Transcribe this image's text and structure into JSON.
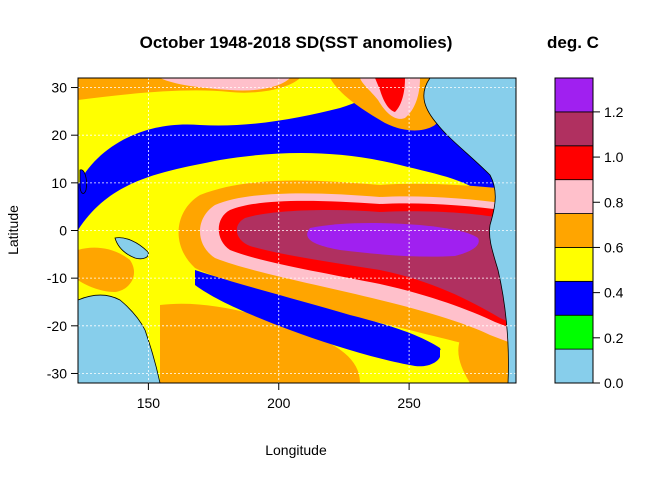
{
  "chart_data": {
    "type": "heatmap",
    "title": "October 1948-2018 SD(SST anomolies)",
    "xlabel": "Longitude",
    "ylabel": "Latitude",
    "xlim": [
      123,
      291
    ],
    "ylim": [
      -32,
      32
    ],
    "xticks": [
      150,
      200,
      250
    ],
    "yticks": [
      -30,
      -20,
      -10,
      0,
      10,
      20,
      30
    ],
    "grid": true,
    "colorbar": {
      "title": "deg. C",
      "levels": [
        0.0,
        0.15,
        0.3,
        0.45,
        0.6,
        0.75,
        0.9,
        1.05,
        1.2,
        1.35
      ],
      "ticks": [
        0.0,
        0.2,
        0.4,
        0.6,
        0.8,
        1.0,
        1.2
      ],
      "colors": [
        "#87CEEB",
        "#00FF00",
        "#0000FF",
        "#FFFF00",
        "#FFA500",
        "#FFC0CB",
        "#FF0000",
        "#B03060",
        "#A020F0",
        "#000000"
      ]
    },
    "land_color": "#87CEEB",
    "coast_color": "#000000"
  }
}
